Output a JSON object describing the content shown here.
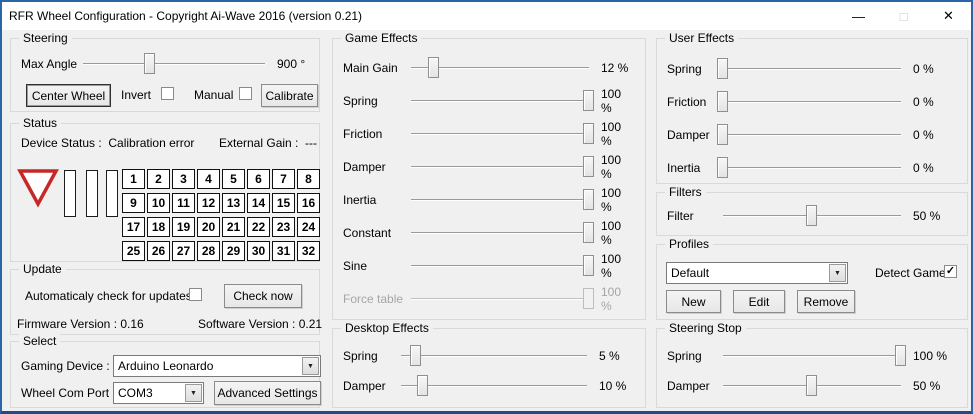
{
  "colors": {
    "window_border": "#2866a8",
    "triangle_red": "#c62828",
    "background": "#f0f0f0"
  },
  "window": {
    "title": "RFR Wheel Configuration - Copyright Ai-Wave 2016 (version 0.21)",
    "controls": {
      "minimize": "—",
      "maximize": "□",
      "close": "✕"
    }
  },
  "steering": {
    "legend": "Steering",
    "sliders": [
      {
        "label": "Max Angle",
        "display": "900 °",
        "pct": 37
      }
    ],
    "center_wheel": "Center Wheel",
    "invert": {
      "label": "Invert",
      "checked": false
    },
    "manual": {
      "label": "Manual",
      "checked": false
    },
    "calibrate": "Calibrate"
  },
  "status": {
    "legend": "Status",
    "device_status_label": "Device Status :",
    "device_status_value": "Calibration error",
    "external_gain_label": "External Gain :",
    "external_gain_value": "---",
    "buttons": [
      "1",
      "2",
      "3",
      "4",
      "5",
      "6",
      "7",
      "8",
      "9",
      "10",
      "11",
      "12",
      "13",
      "14",
      "15",
      "16",
      "17",
      "18",
      "19",
      "20",
      "21",
      "22",
      "23",
      "24",
      "25",
      "26",
      "27",
      "28",
      "29",
      "30",
      "31",
      "32"
    ]
  },
  "update": {
    "legend": "Update",
    "auto_check_label": "Automaticaly check for updates",
    "auto_check": {
      "checked": false
    },
    "check_now": "Check now",
    "firmware_version": "Firmware Version :  0.16",
    "software_version": "Software Version :  0.21"
  },
  "select": {
    "legend": "Select",
    "gaming_device_label": "Gaming Device :",
    "gaming_device_value": "Arduino Leonardo",
    "wheel_com_port_label": "Wheel Com Port :",
    "wheel_com_port_value": "COM3",
    "advanced_settings": "Advanced Settings",
    "dropdown_arrow": "▼"
  },
  "game_effects": {
    "legend": "Game Effects",
    "sliders": [
      {
        "label": "Main Gain",
        "display": "12 %",
        "pct": 13
      },
      {
        "label": "Spring",
        "display": "100 %",
        "pct": 100
      },
      {
        "label": "Friction",
        "display": "100 %",
        "pct": 100
      },
      {
        "label": "Damper",
        "display": "100 %",
        "pct": 100
      },
      {
        "label": "Inertia",
        "display": "100 %",
        "pct": 100
      },
      {
        "label": "Constant",
        "display": "100 %",
        "pct": 100
      },
      {
        "label": "Sine",
        "display": "100 %",
        "pct": 100
      },
      {
        "label": "Force table",
        "display": "100 %",
        "pct": 100,
        "disabled": true
      }
    ]
  },
  "desktop_effects": {
    "legend": "Desktop Effects",
    "sliders": [
      {
        "label": "Spring",
        "display": "5 %",
        "pct": 8
      },
      {
        "label": "Damper",
        "display": "10 %",
        "pct": 12
      }
    ]
  },
  "user_effects": {
    "legend": "User Effects",
    "sliders": [
      {
        "label": "Spring",
        "display": "0 %",
        "pct": 0
      },
      {
        "label": "Friction",
        "display": "0 %",
        "pct": 0
      },
      {
        "label": "Damper",
        "display": "0 %",
        "pct": 0
      },
      {
        "label": "Inertia",
        "display": "0 %",
        "pct": 0
      }
    ]
  },
  "filters": {
    "legend": "Filters",
    "sliders": [
      {
        "label": "Filter",
        "display": "50 %",
        "pct": 50
      }
    ]
  },
  "profiles": {
    "legend": "Profiles",
    "profile_value": "Default",
    "detect_game_label": "Detect Game",
    "detect_game": {
      "checked": true
    },
    "new": "New",
    "edit": "Edit",
    "remove": "Remove"
  },
  "steering_stop": {
    "legend": "Steering Stop",
    "sliders": [
      {
        "label": "Spring",
        "display": "100 %",
        "pct": 100
      },
      {
        "label": "Damper",
        "display": "50 %",
        "pct": 50
      }
    ]
  }
}
